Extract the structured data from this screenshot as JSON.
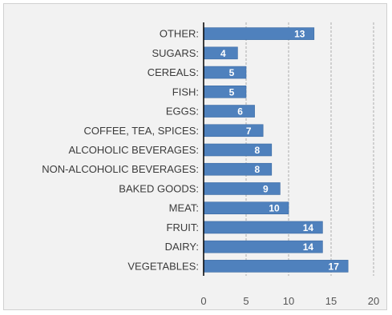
{
  "chart_data": {
    "type": "bar",
    "orientation": "horizontal",
    "categories": [
      "OTHER:",
      "SUGARS:",
      "CEREALS:",
      "FISH:",
      "EGGS:",
      "COFFEE, TEA, SPICES:",
      "ALCOHOLIC BEVERAGES:",
      "NON-ALCOHOLIC BEVERAGES:",
      "BAKED GOODS:",
      "MEAT:",
      "FRUIT:",
      "DAIRY:",
      "VEGETABLES:"
    ],
    "values": [
      13,
      4,
      5,
      5,
      6,
      7,
      8,
      8,
      9,
      10,
      14,
      14,
      17
    ],
    "data_labels": [
      "13",
      "4",
      "5",
      "5",
      "6",
      "7",
      "8",
      "8",
      "9",
      "10",
      "14",
      "14",
      "17"
    ],
    "x_ticks": [
      "0",
      "5",
      "10",
      "15",
      "20"
    ],
    "xlim": [
      0,
      20
    ],
    "title": "",
    "xlabel": "",
    "ylabel": "",
    "grid": true,
    "legend": "none",
    "bar_color": "#4f81bd",
    "bar_border_color": "#3a6aa3",
    "background_color": "#f2f2f2",
    "grid_color": "#7f7f7f",
    "axis_color": "#000000"
  }
}
